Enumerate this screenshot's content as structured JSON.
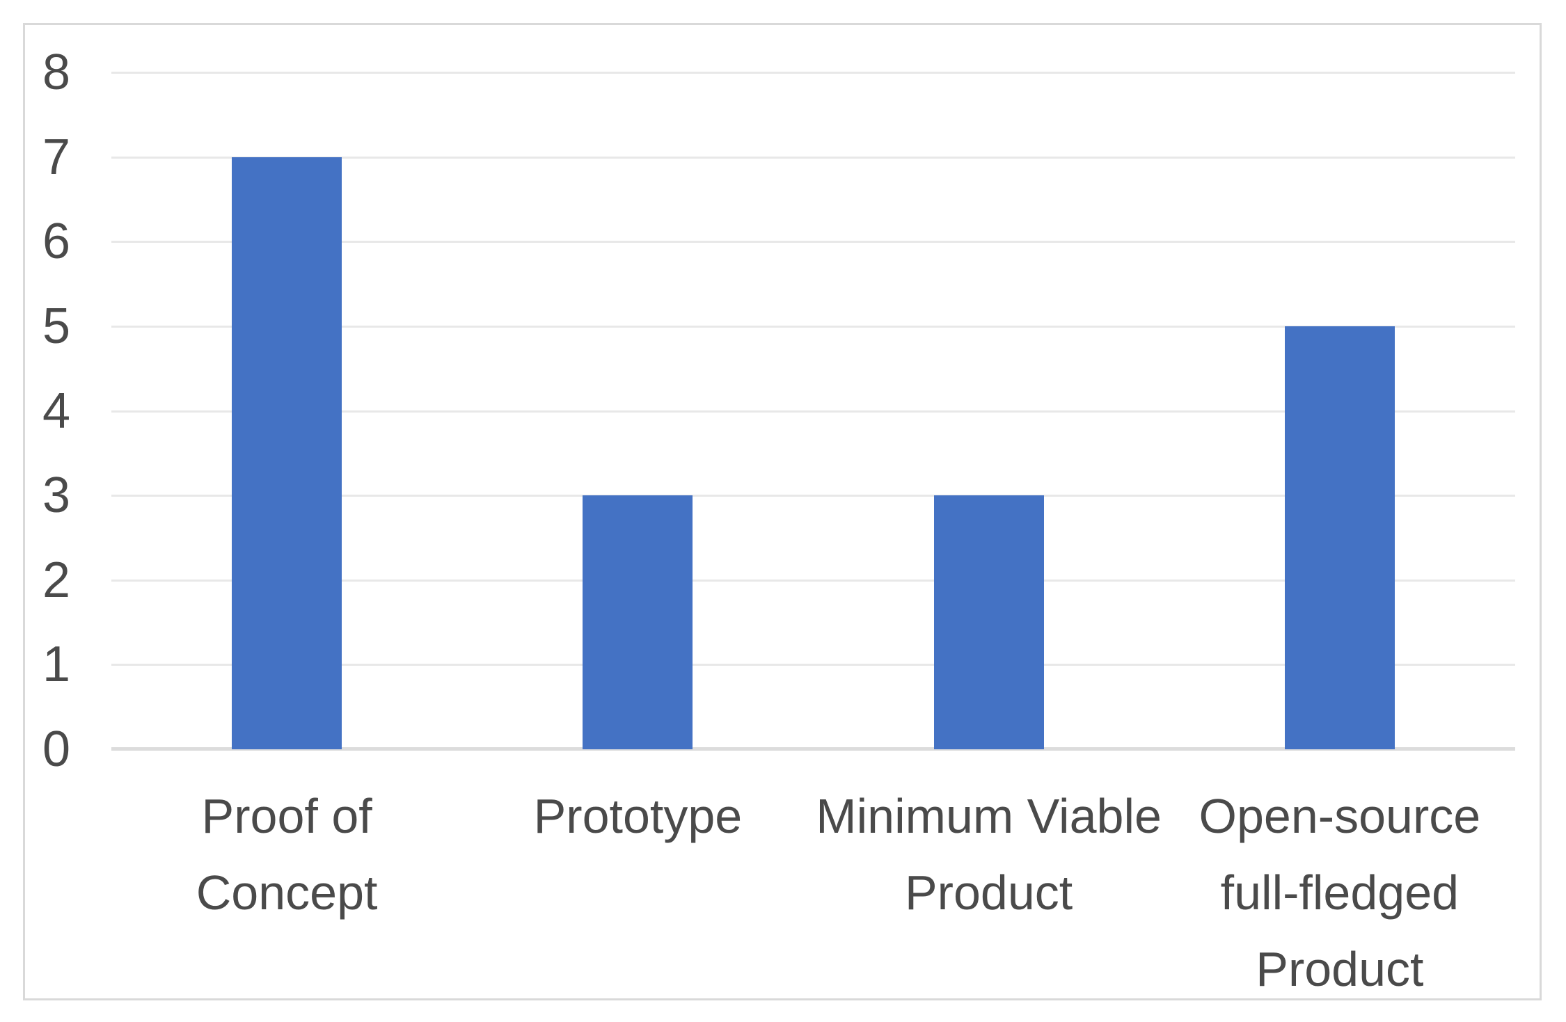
{
  "chart_data": {
    "type": "bar",
    "title": "",
    "xlabel": "",
    "ylabel": "",
    "categories": [
      "Proof of Concept",
      "Prototype",
      "Minimum Viable Product",
      "Open-source full-fledged Product"
    ],
    "category_display_lines": [
      [
        "Proof of",
        "Concept"
      ],
      [
        "Prototype"
      ],
      [
        "Minimum Viable",
        "Product"
      ],
      [
        "Open-source",
        "full-fledged",
        "Product"
      ]
    ],
    "values": [
      7,
      3,
      3,
      5
    ],
    "ylim": [
      0,
      8
    ],
    "yticks": [
      0,
      1,
      2,
      3,
      4,
      5,
      6,
      7,
      8
    ],
    "grid": true,
    "legend": false,
    "colors": {
      "bar": "#4472c4",
      "gridline": "#e8e8e8",
      "axis_line": "#dcdcdc",
      "frame_border": "#d9d9d9",
      "tick_label": "#4a4a4a",
      "category_label": "#4a4a4a",
      "background": "#ffffff"
    }
  }
}
